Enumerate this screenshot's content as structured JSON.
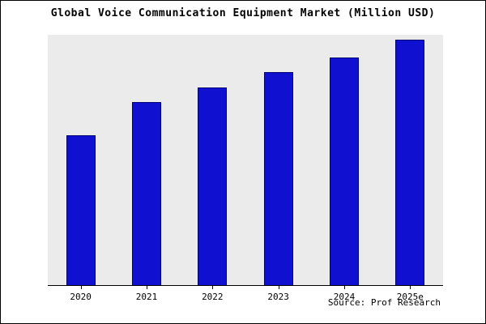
{
  "title": "Global Voice Communication Equipment Market (Million USD)",
  "source_caption": "Source: Prof Research",
  "colors": {
    "bar_fill": "#1010d0",
    "bar_border": "#000070",
    "plot_background": "#ebebeb",
    "axis": "#000000"
  },
  "chart_data": {
    "type": "bar",
    "title": "Global Voice Communication Equipment Market (Million USD)",
    "categories": [
      "2020",
      "2021",
      "2022",
      "2023",
      "2024",
      "2025e"
    ],
    "values": [
      60,
      73,
      79,
      85,
      91,
      98
    ],
    "xlabel": "",
    "ylabel": "",
    "ylim": [
      0,
      100
    ],
    "grid": false,
    "legend": false,
    "y_axis_labels_visible": false,
    "annotations": [
      "Source: Prof Research"
    ]
  }
}
